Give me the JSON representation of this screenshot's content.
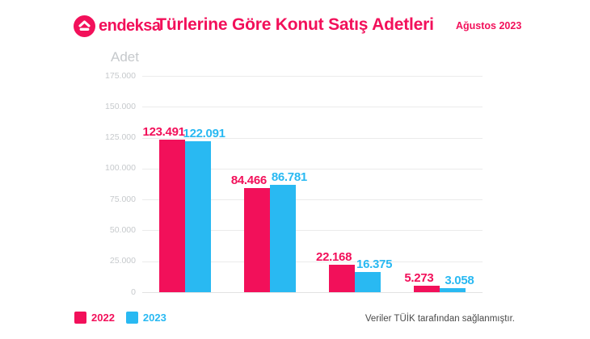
{
  "header": {
    "logo_text": "endeksa",
    "title": "Türlerine Göre Konut Satış Adetleri",
    "date": "Ağustos 2023"
  },
  "footer": {
    "note": "Veriler TÜİK tarafından sağlanmıştır."
  },
  "colors": {
    "brand_pink": "#F2105A",
    "series_2022": "#F2105A",
    "series_2023": "#29B9F2",
    "axis_text": "#C6C9CC",
    "gridline": "#EBEBEB",
    "note_text": "#4A4A4A"
  },
  "chart_data": {
    "type": "bar",
    "title": "Türlerine Göre Konut Satış Adetleri",
    "subtitle": "Ağustos 2023",
    "ylabel": "Adet",
    "ylim": [
      0,
      175000
    ],
    "grid": true,
    "legend_position": "bottom-left",
    "yticks": [
      {
        "value": 0,
        "label": "0"
      },
      {
        "value": 25000,
        "label": "25.000"
      },
      {
        "value": 50000,
        "label": "50.000"
      },
      {
        "value": 75000,
        "label": "75.000"
      },
      {
        "value": 100000,
        "label": "100.000"
      },
      {
        "value": 125000,
        "label": "125.000"
      },
      {
        "value": 150000,
        "label": "150.000"
      },
      {
        "value": 175000,
        "label": "175.000"
      }
    ],
    "categories": [
      "",
      "",
      "",
      ""
    ],
    "series": [
      {
        "name": "2022",
        "color": "#F2105A",
        "values": [
          123491,
          84466,
          22168,
          5273
        ],
        "value_labels": [
          "123.491",
          "84.466",
          "22.168",
          "5.273"
        ]
      },
      {
        "name": "2023",
        "color": "#29B9F2",
        "values": [
          122091,
          86781,
          16375,
          3058
        ],
        "value_labels": [
          "122.091",
          "86.781",
          "16.375",
          "3.058"
        ]
      }
    ]
  }
}
